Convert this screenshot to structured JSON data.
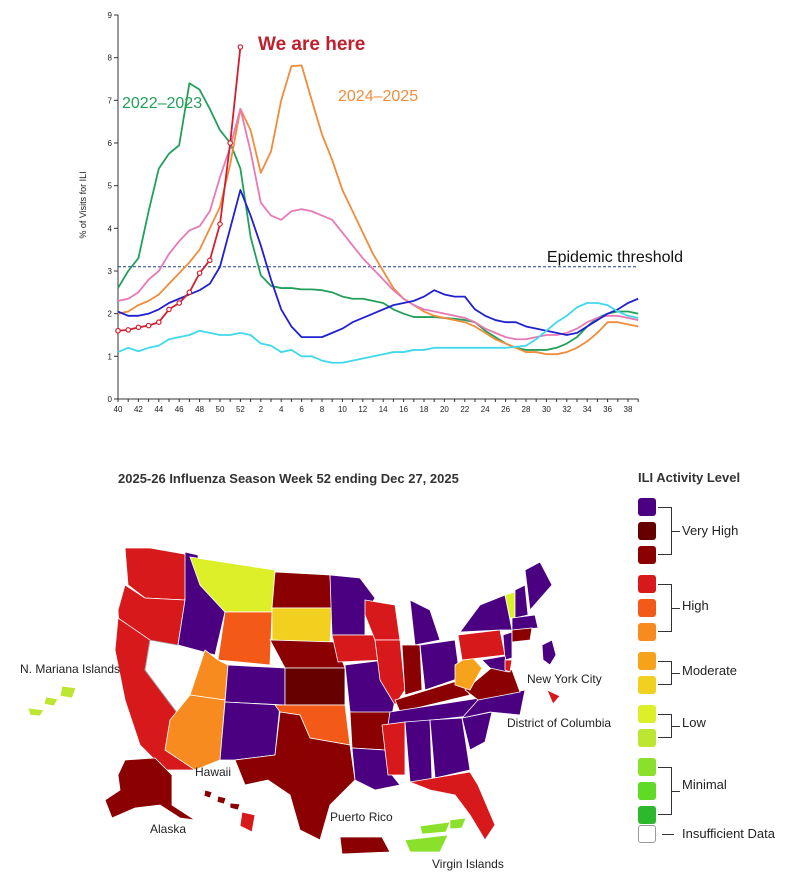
{
  "chart_data": {
    "type": "line",
    "ylabel": "% of Visits for ILI",
    "xlabel": "",
    "ylim": [
      0,
      9
    ],
    "y_ticks": [
      "0",
      "1",
      "2",
      "3",
      "4",
      "5",
      "6",
      "7",
      "8",
      "9"
    ],
    "x_weeks": [
      40,
      41,
      42,
      43,
      44,
      45,
      46,
      47,
      48,
      49,
      50,
      51,
      52,
      1,
      2,
      3,
      4,
      5,
      6,
      7,
      8,
      9,
      10,
      11,
      12,
      13,
      14,
      15,
      16,
      17,
      18,
      19,
      20,
      21,
      22,
      23,
      24,
      25,
      26,
      27,
      28,
      29,
      30,
      31,
      32,
      33,
      34,
      35,
      36,
      37,
      38,
      39
    ],
    "x_tick_labels": [
      "40",
      "42",
      "44",
      "46",
      "48",
      "50",
      "52",
      "2",
      "4",
      "6",
      "8",
      "10",
      "12",
      "14",
      "16",
      "18",
      "20",
      "22",
      "24",
      "26",
      "28",
      "30",
      "32",
      "34",
      "36",
      "38"
    ],
    "epidemic_threshold": 3.1,
    "threshold_label": "Epidemic threshold",
    "series": [
      {
        "name": "2022-2023",
        "color": "#22a05a",
        "label": "2022–2023",
        "values": [
          2.6,
          3.0,
          3.3,
          4.4,
          5.4,
          5.75,
          5.95,
          7.4,
          7.25,
          6.8,
          6.3,
          6.0,
          5.4,
          3.8,
          2.9,
          2.65,
          2.6,
          2.6,
          2.57,
          2.57,
          2.55,
          2.5,
          2.4,
          2.35,
          2.35,
          2.3,
          2.25,
          2.1,
          2.0,
          1.92,
          1.92,
          1.92,
          1.9,
          1.88,
          1.85,
          1.8,
          1.6,
          1.45,
          1.3,
          1.2,
          1.15,
          1.15,
          1.15,
          1.2,
          1.3,
          1.45,
          1.7,
          1.9,
          2.0,
          2.05,
          2.05,
          2.0
        ]
      },
      {
        "name": "2024-2025",
        "color": "#f08c3c",
        "label": "2024–2025",
        "values": [
          2.0,
          2.05,
          2.2,
          2.3,
          2.45,
          2.7,
          2.95,
          3.2,
          3.5,
          4.0,
          4.5,
          5.5,
          6.8,
          6.3,
          5.3,
          5.8,
          7.0,
          7.8,
          7.82,
          7.0,
          6.2,
          5.6,
          4.9,
          4.4,
          3.9,
          3.4,
          3.0,
          2.6,
          2.35,
          2.2,
          2.05,
          1.95,
          1.9,
          1.85,
          1.8,
          1.7,
          1.55,
          1.4,
          1.3,
          1.2,
          1.1,
          1.1,
          1.05,
          1.05,
          1.1,
          1.2,
          1.35,
          1.55,
          1.8,
          1.8,
          1.75,
          1.7
        ]
      },
      {
        "name": "Pink season",
        "color": "#e879b4",
        "values": [
          2.3,
          2.35,
          2.5,
          2.8,
          3.0,
          3.4,
          3.7,
          3.95,
          4.05,
          4.4,
          5.2,
          5.9,
          6.8,
          5.8,
          4.6,
          4.3,
          4.2,
          4.4,
          4.45,
          4.4,
          4.3,
          4.2,
          3.9,
          3.6,
          3.3,
          3.05,
          2.8,
          2.55,
          2.35,
          2.2,
          2.1,
          2.05,
          2.0,
          1.95,
          1.9,
          1.8,
          1.65,
          1.55,
          1.45,
          1.4,
          1.4,
          1.45,
          1.5,
          1.5,
          1.55,
          1.65,
          1.8,
          1.9,
          1.95,
          1.95,
          1.9,
          1.85
        ]
      },
      {
        "name": "Blue season",
        "color": "#2020d0",
        "values": [
          2.05,
          1.95,
          1.95,
          2.0,
          2.1,
          2.25,
          2.35,
          2.45,
          2.55,
          2.7,
          3.1,
          4.0,
          4.9,
          4.3,
          3.6,
          2.8,
          2.1,
          1.7,
          1.45,
          1.45,
          1.45,
          1.55,
          1.65,
          1.8,
          1.9,
          2.0,
          2.1,
          2.2,
          2.25,
          2.3,
          2.4,
          2.55,
          2.45,
          2.4,
          2.4,
          2.1,
          1.95,
          1.85,
          1.8,
          1.8,
          1.7,
          1.65,
          1.6,
          1.55,
          1.5,
          1.55,
          1.7,
          1.85,
          2.0,
          2.1,
          2.25,
          2.35
        ]
      },
      {
        "name": "Cyan season",
        "color": "#40d8ec",
        "values": [
          1.1,
          1.2,
          1.12,
          1.2,
          1.25,
          1.4,
          1.45,
          1.5,
          1.6,
          1.55,
          1.5,
          1.5,
          1.55,
          1.5,
          1.3,
          1.25,
          1.1,
          1.15,
          1.0,
          1.0,
          0.9,
          0.85,
          0.85,
          0.9,
          0.95,
          1.0,
          1.05,
          1.1,
          1.1,
          1.15,
          1.15,
          1.2,
          1.2,
          1.2,
          1.2,
          1.2,
          1.2,
          1.2,
          1.2,
          1.22,
          1.25,
          1.4,
          1.6,
          1.8,
          1.95,
          2.15,
          2.25,
          2.25,
          2.2,
          2.05,
          1.95,
          1.9
        ]
      },
      {
        "name": "2025-2026",
        "color": "#d02030",
        "label": "We are here",
        "markers": true,
        "values": [
          1.6,
          1.62,
          1.68,
          1.72,
          1.8,
          2.1,
          2.25,
          2.5,
          2.95,
          3.25,
          4.1,
          6.0,
          8.25
        ]
      }
    ]
  },
  "map": {
    "title": "2025-26 Influenza Season Week 52 ending Dec 27, 2025",
    "territory_labels": {
      "n_mariana": "N. Mariana Islands",
      "hawaii": "Hawaii",
      "alaska": "Alaska",
      "puerto_rico": "Puerto Rico",
      "virgin_islands": "Virgin Islands",
      "new_york_city": "New York City",
      "district_of_columbia": "District of Columbia"
    },
    "colors": {
      "very_high_top": "#4b0082",
      "very_high_mid": "#660000",
      "very_high_low": "#8b0000",
      "high_top": "#d7191c",
      "high_mid": "#f45a17",
      "high_low": "#f78b1f",
      "moderate_top": "#f7a21b",
      "moderate_low": "#f2d01f",
      "low_top": "#ddef29",
      "low_low": "#bce631",
      "minimal_top": "#8ae02a",
      "minimal_mid": "#5fda26",
      "minimal_low": "#2eb82e",
      "insufficient": "#ffffff"
    }
  },
  "legend": {
    "title": "ILI Activity Level",
    "groups": [
      "Very High",
      "High",
      "Moderate",
      "Low",
      "Minimal"
    ],
    "insufficient_label": "Insufficient Data"
  }
}
